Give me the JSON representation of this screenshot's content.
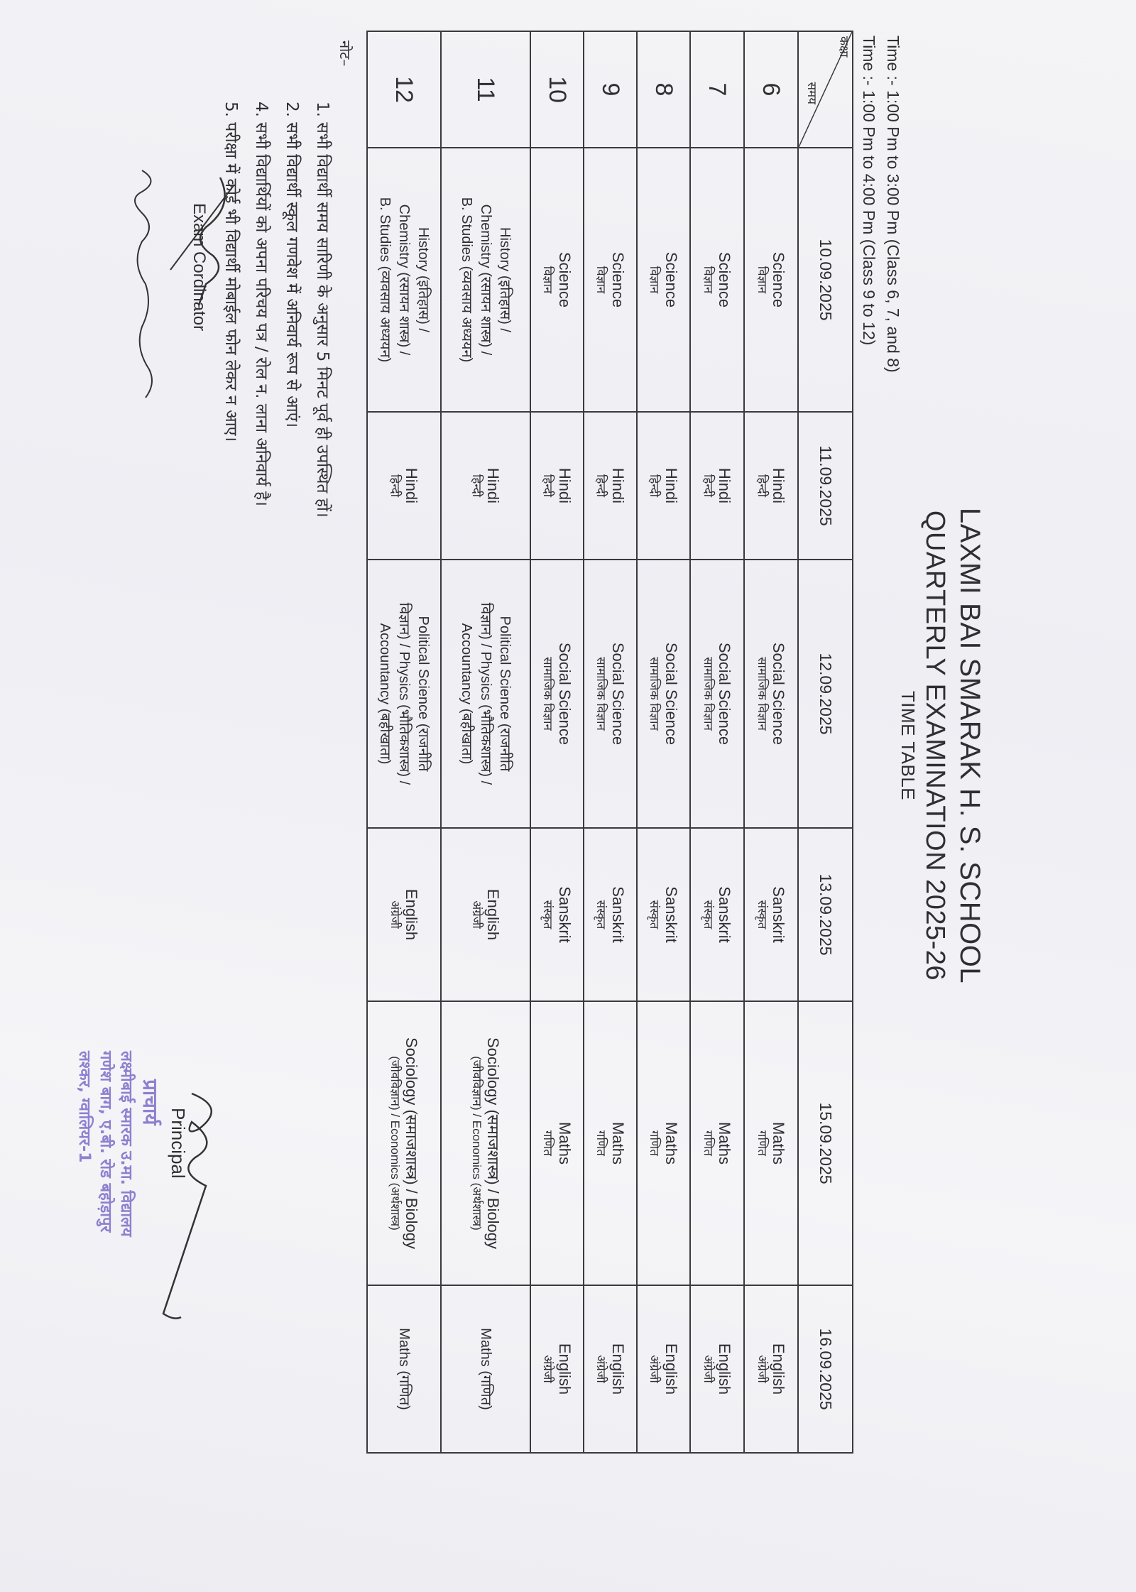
{
  "header": {
    "school": "LAXMI BAI SMARAK H. S. SCHOOL",
    "exam": "QUARTERLY EXAMINATION 2025-26",
    "subtitle": "TIME TABLE",
    "time_lines": [
      "Time :- 1:00 Pm to 3:00 Pm  (Class 6, 7, and 8)",
      "Time :- 1:00 Pm to 4:00 Pm (Class 9 to 12)"
    ]
  },
  "table": {
    "corner_class": "कक्षा",
    "corner_time": "समय",
    "dates": [
      "10.09.2025",
      "11.09.2025",
      "12.09.2025",
      "13.09.2025",
      "15.09.2025",
      "16.09.2025"
    ],
    "rows": [
      {
        "class": "6",
        "cells": [
          [
            "Science",
            "विज्ञान"
          ],
          [
            "Hindi",
            "हिन्दी"
          ],
          [
            "Social Science",
            "सामाजिक विज्ञान"
          ],
          [
            "Sanskrit",
            "संस्कृत"
          ],
          [
            "Maths",
            "गणित"
          ],
          [
            "English",
            "अंग्रेजी"
          ]
        ]
      },
      {
        "class": "7",
        "cells": [
          [
            "Science",
            "विज्ञान"
          ],
          [
            "Hindi",
            "हिन्दी"
          ],
          [
            "Social Science",
            "सामाजिक विज्ञान"
          ],
          [
            "Sanskrit",
            "संस्कृत"
          ],
          [
            "Maths",
            "गणित"
          ],
          [
            "English",
            "अंग्रेजी"
          ]
        ]
      },
      {
        "class": "8",
        "cells": [
          [
            "Science",
            "विज्ञान"
          ],
          [
            "Hindi",
            "हिन्दी"
          ],
          [
            "Social Science",
            "सामाजिक विज्ञान"
          ],
          [
            "Sanskrit",
            "संस्कृत"
          ],
          [
            "Maths",
            "गणित"
          ],
          [
            "English",
            "अंग्रेजी"
          ]
        ]
      },
      {
        "class": "9",
        "cells": [
          [
            "Science",
            "विज्ञान"
          ],
          [
            "Hindi",
            "हिन्दी"
          ],
          [
            "Social Science",
            "सामाजिक विज्ञान"
          ],
          [
            "Sanskrit",
            "संस्कृत"
          ],
          [
            "Maths",
            "गणित"
          ],
          [
            "English",
            "अंग्रेजी"
          ]
        ]
      },
      {
        "class": "10",
        "cells": [
          [
            "Science",
            "विज्ञान"
          ],
          [
            "Hindi",
            "हिन्दी"
          ],
          [
            "Social Science",
            "सामाजिक विज्ञान"
          ],
          [
            "Sanskrit",
            "संस्कृत"
          ],
          [
            "Maths",
            "गणित"
          ],
          [
            "English",
            "अंग्रेजी"
          ]
        ]
      },
      {
        "class": "11",
        "multi": true,
        "cells": [
          [
            "History (इतिहास) /",
            "Chemistry (रसायन शास्त्र) /",
            "B. Studies (व्यवसाय अध्ययन)"
          ],
          [
            "Hindi",
            "हिन्दी"
          ],
          [
            "Political Science (राजनीति",
            "विज्ञान) /  Physics (भौतिकशास्त्र) /",
            "Accountancy (बहीखाता)"
          ],
          [
            "English",
            "अंग्रेजी"
          ],
          [
            "Sociology (समाजशास्त्र) / Biology",
            "(जीवविज्ञान) / Economics (अर्थशास्त्र)"
          ],
          [
            "Maths (गणित)"
          ]
        ]
      },
      {
        "class": "12",
        "multi": true,
        "cells": [
          [
            "History (इतिहास) /",
            "Chemistry (रसायन शास्त्र) /",
            "B. Studies (व्यवसाय अध्ययन)"
          ],
          [
            "Hindi",
            "हिन्दी"
          ],
          [
            "Political Science (राजनीति",
            "विज्ञान) /  Physics (भौतिकशास्त्र) /",
            "Accountancy (बहीखाता)"
          ],
          [
            "English",
            "अंग्रेजी"
          ],
          [
            "Sociology (समाजशास्त्र) / Biology",
            "(जीवविज्ञान) / Economics (अर्थशास्त्र)"
          ],
          [
            "Maths (गणित)"
          ]
        ]
      }
    ]
  },
  "notes": {
    "heading": "नोट–",
    "items": [
      "1.  सभी विद्यार्थी समय सारिणी के अनुसार 5 मिनट पूर्व ही उपस्थित हों।",
      "2.  सभी विद्यार्थी स्कूल गणवेश में अनिवार्य रूप से आएं।",
      "4.  सभी विद्यार्थियों को अपना परिचय पत्र / रोल न. लाना अनिवार्य है।",
      "5.  परीक्षा में कोई भी विद्यार्थी मोबाईल फोन लेकर न आए।"
    ]
  },
  "signatures": {
    "exam_coordinator": "Exam Cordinator",
    "principal": "Principal"
  },
  "stamp": {
    "title": "प्राचार्य",
    "lines": [
      "लक्ष्मीबाई स्मारक उ.मा. विद्यालय",
      "गणेश बाग, ए.बी. रोड बहोड़ापुर",
      "लश्कर, ग्वालियर-1"
    ],
    "color": "#7d6cc9"
  }
}
